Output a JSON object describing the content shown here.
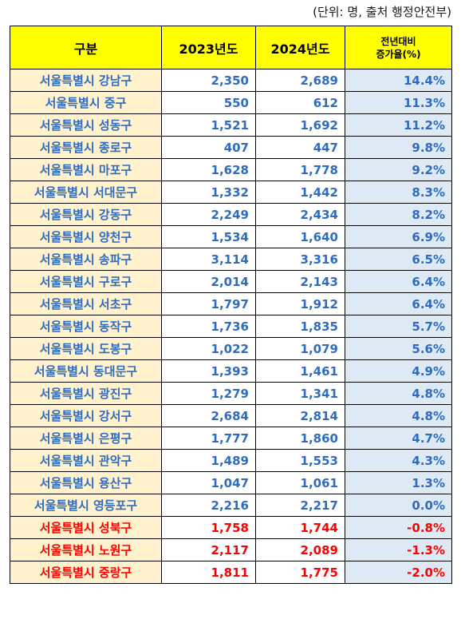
{
  "unit_note": "(단위: 명, 출처 행정안전부)",
  "header": {
    "region": "구분",
    "y2023": "2023년도",
    "y2024": "2024년도",
    "rate_line1": "전년대비",
    "rate_line2": "증가율(%)"
  },
  "colors": {
    "header_bg": "#ffff00",
    "region_bg": "#fff2cc",
    "rate_bg": "#dde9f5",
    "positive_text": "#2f6cc0",
    "negative_text": "#ff0000"
  },
  "rows": [
    {
      "region": "서울특별시 강남구",
      "y2023": "2,350",
      "y2024": "2,689",
      "rate": "14.4%",
      "negative": false
    },
    {
      "region": "서울특별시 중구",
      "y2023": "550",
      "y2024": "612",
      "rate": "11.3%",
      "negative": false
    },
    {
      "region": "서울특별시 성동구",
      "y2023": "1,521",
      "y2024": "1,692",
      "rate": "11.2%",
      "negative": false
    },
    {
      "region": "서울특별시 종로구",
      "y2023": "407",
      "y2024": "447",
      "rate": "9.8%",
      "negative": false
    },
    {
      "region": "서울특별시 마포구",
      "y2023": "1,628",
      "y2024": "1,778",
      "rate": "9.2%",
      "negative": false
    },
    {
      "region": "서울특별시 서대문구",
      "y2023": "1,332",
      "y2024": "1,442",
      "rate": "8.3%",
      "negative": false
    },
    {
      "region": "서울특별시 강동구",
      "y2023": "2,249",
      "y2024": "2,434",
      "rate": "8.2%",
      "negative": false
    },
    {
      "region": "서울특별시 양천구",
      "y2023": "1,534",
      "y2024": "1,640",
      "rate": "6.9%",
      "negative": false
    },
    {
      "region": "서울특별시 송파구",
      "y2023": "3,114",
      "y2024": "3,316",
      "rate": "6.5%",
      "negative": false
    },
    {
      "region": "서울특별시 구로구",
      "y2023": "2,014",
      "y2024": "2,143",
      "rate": "6.4%",
      "negative": false
    },
    {
      "region": "서울특별시 서초구",
      "y2023": "1,797",
      "y2024": "1,912",
      "rate": "6.4%",
      "negative": false
    },
    {
      "region": "서울특별시 동작구",
      "y2023": "1,736",
      "y2024": "1,835",
      "rate": "5.7%",
      "negative": false
    },
    {
      "region": "서울특별시 도봉구",
      "y2023": "1,022",
      "y2024": "1,079",
      "rate": "5.6%",
      "negative": false
    },
    {
      "region": "서울특별시 동대문구",
      "y2023": "1,393",
      "y2024": "1,461",
      "rate": "4.9%",
      "negative": false
    },
    {
      "region": "서울특별시 광진구",
      "y2023": "1,279",
      "y2024": "1,341",
      "rate": "4.8%",
      "negative": false
    },
    {
      "region": "서울특별시 강서구",
      "y2023": "2,684",
      "y2024": "2,814",
      "rate": "4.8%",
      "negative": false
    },
    {
      "region": "서울특별시 은평구",
      "y2023": "1,777",
      "y2024": "1,860",
      "rate": "4.7%",
      "negative": false
    },
    {
      "region": "서울특별시 관악구",
      "y2023": "1,489",
      "y2024": "1,553",
      "rate": "4.3%",
      "negative": false
    },
    {
      "region": "서울특별시 용산구",
      "y2023": "1,047",
      "y2024": "1,061",
      "rate": "1.3%",
      "negative": false
    },
    {
      "region": "서울특별시 영등포구",
      "y2023": "2,216",
      "y2024": "2,217",
      "rate": "0.0%",
      "negative": false
    },
    {
      "region": "서울특별시 성북구",
      "y2023": "1,758",
      "y2024": "1,744",
      "rate": "-0.8%",
      "negative": true
    },
    {
      "region": "서울특별시 노원구",
      "y2023": "2,117",
      "y2024": "2,089",
      "rate": "-1.3%",
      "negative": true
    },
    {
      "region": "서울특별시 중랑구",
      "y2023": "1,811",
      "y2024": "1,775",
      "rate": "-2.0%",
      "negative": true
    }
  ]
}
